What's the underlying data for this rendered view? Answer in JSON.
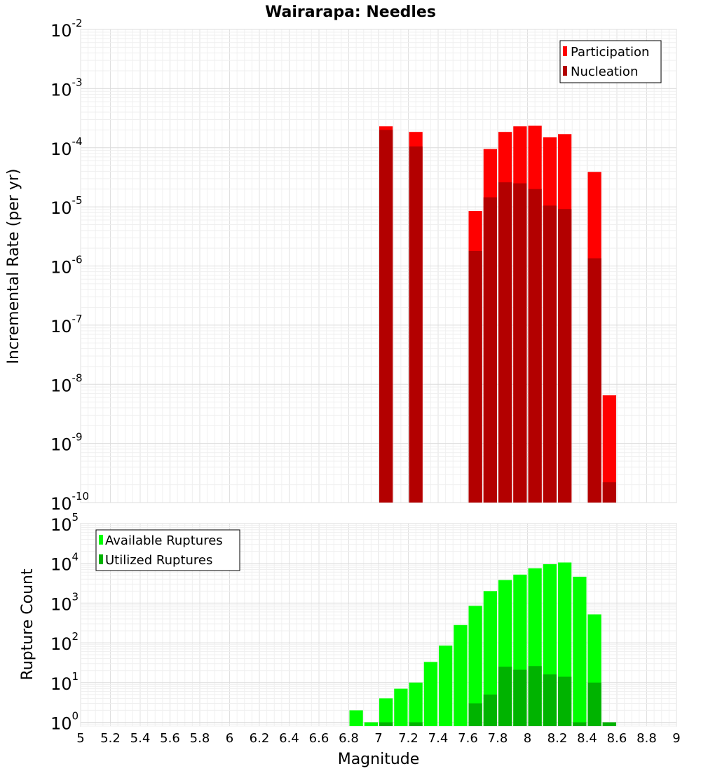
{
  "chart_data": [
    {
      "type": "bar",
      "title": "Wairarapa: Needles",
      "xlabel": "",
      "ylabel": "Incremental Rate (per yr)",
      "yscale": "log",
      "ylim": [
        1e-10,
        0.01
      ],
      "xlim": [
        5,
        9
      ],
      "grid": true,
      "legend_position": "top-right",
      "x": [
        7.05,
        7.25,
        7.65,
        7.75,
        7.85,
        7.95,
        8.05,
        8.15,
        8.25,
        8.45,
        8.55
      ],
      "series": [
        {
          "name": "Participation",
          "color": "#ff0000",
          "values": [
            0.00023,
            0.000185,
            8.5e-06,
            9.5e-05,
            0.000185,
            0.00023,
            0.000235,
            0.00015,
            0.00017,
            3.9e-05,
            6.5e-09
          ]
        },
        {
          "name": "Nucleation",
          "color": "#b30000",
          "values": [
            0.0002,
            0.000105,
            1.8e-06,
            1.45e-05,
            2.6e-05,
            2.5e-05,
            2e-05,
            1.05e-05,
            9.2e-06,
            1.35e-06,
            2.2e-10
          ]
        }
      ]
    },
    {
      "type": "bar",
      "title": "",
      "xlabel": "Magnitude",
      "ylabel": "Rupture Count",
      "yscale": "log",
      "ylim": [
        0.8,
        100000.0
      ],
      "xlim": [
        5,
        9
      ],
      "grid": true,
      "legend_position": "top-left",
      "x": [
        6.85,
        6.95,
        7.05,
        7.15,
        7.25,
        7.35,
        7.45,
        7.55,
        7.65,
        7.75,
        7.85,
        7.95,
        8.05,
        8.15,
        8.25,
        8.35,
        8.45,
        8.55
      ],
      "series": [
        {
          "name": "Available Ruptures",
          "color": "#00ff00",
          "values": [
            2,
            1,
            4,
            7,
            10,
            33,
            85,
            280,
            850,
            2000,
            3800,
            5200,
            7500,
            9500,
            10500,
            4600,
            520,
            1
          ]
        },
        {
          "name": "Utilized Ruptures",
          "color": "#00b300",
          "values": [
            0,
            0,
            1,
            0,
            1,
            0,
            0,
            0,
            3,
            5,
            25,
            21,
            26,
            16,
            14,
            1,
            10,
            1
          ]
        }
      ]
    }
  ],
  "xticks": [
    "5",
    "5.2",
    "5.4",
    "5.6",
    "5.8",
    "6",
    "6.2",
    "6.4",
    "6.6",
    "6.8",
    "7",
    "7.2",
    "7.4",
    "7.6",
    "7.8",
    "8",
    "8.2",
    "8.4",
    "8.6",
    "8.8",
    "9"
  ],
  "top_yticks": [
    {
      "base": "10",
      "exp": "-10"
    },
    {
      "base": "10",
      "exp": "-9"
    },
    {
      "base": "10",
      "exp": "-8"
    },
    {
      "base": "10",
      "exp": "-7"
    },
    {
      "base": "10",
      "exp": "-6"
    },
    {
      "base": "10",
      "exp": "-5"
    },
    {
      "base": "10",
      "exp": "-4"
    },
    {
      "base": "10",
      "exp": "-3"
    },
    {
      "base": "10",
      "exp": "-2"
    }
  ],
  "bottom_yticks": [
    {
      "base": "10",
      "exp": "0"
    },
    {
      "base": "10",
      "exp": "1"
    },
    {
      "base": "10",
      "exp": "2"
    },
    {
      "base": "10",
      "exp": "3"
    },
    {
      "base": "10",
      "exp": "4"
    },
    {
      "base": "10",
      "exp": "5"
    }
  ]
}
